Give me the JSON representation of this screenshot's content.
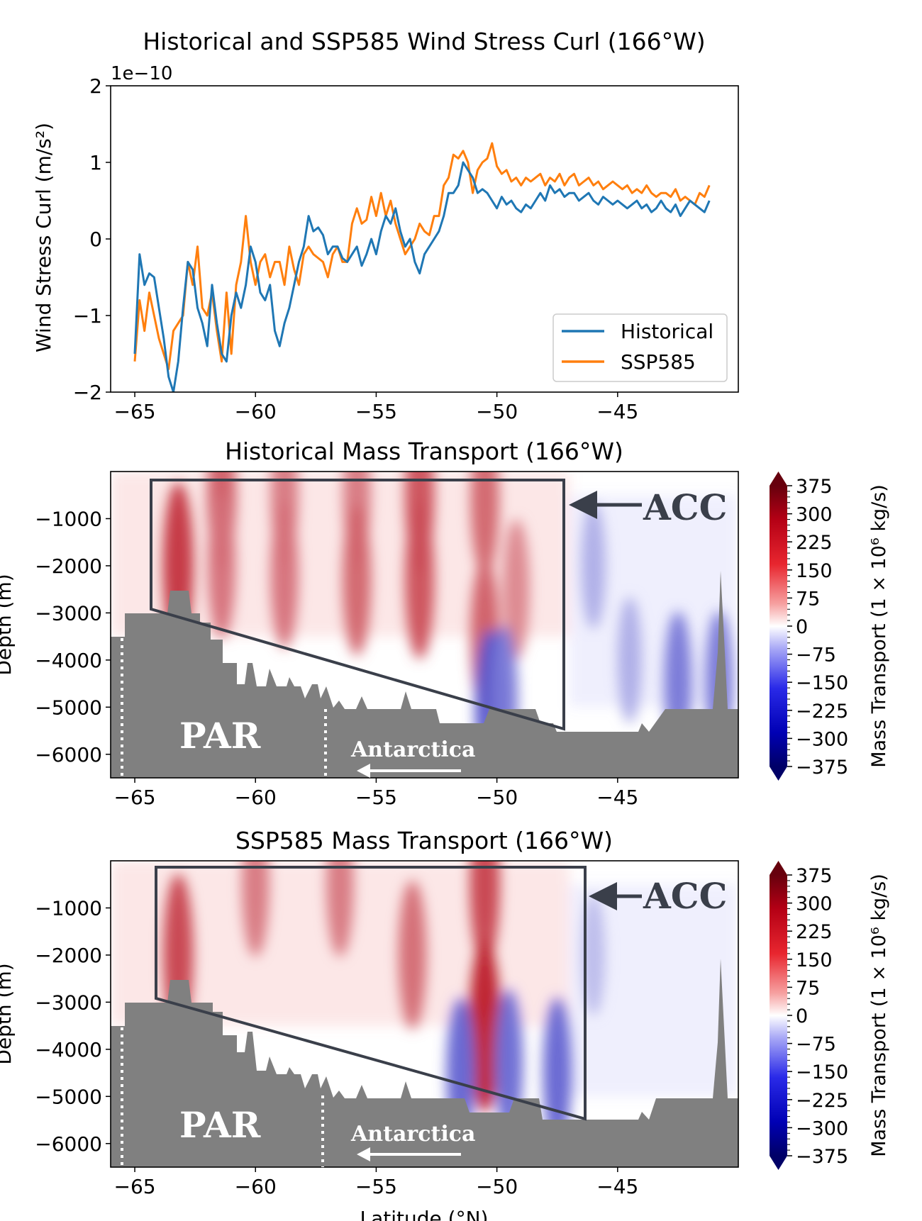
{
  "colors": {
    "historical": "#1f77b4",
    "ssp585": "#ff7f0e",
    "bathymetry": "#808080",
    "box": "#3a3f4a"
  },
  "chart_data": [
    {
      "type": "line",
      "title": "Historical and SSP585 Wind Stress Curl (166$^\\circ$W)",
      "title_text": "Historical and SSP585 Wind Stress Curl (166°W)",
      "ylabel": "Wind Stress Curl (m/s²)",
      "offset_text": "1e−10",
      "xlim": [
        -66,
        -40
      ],
      "ylim": [
        -2,
        2
      ],
      "xticks": [
        -65,
        -60,
        -55,
        -50,
        -45
      ],
      "xtick_labels": [
        "−65",
        "−60",
        "−55",
        "−50",
        "−45"
      ],
      "yticks": [
        -2,
        -1,
        0,
        1,
        2
      ],
      "ytick_labels": [
        "−2",
        "−1",
        "0",
        "1",
        "2"
      ],
      "legend": {
        "position": "lower-right",
        "entries": [
          "Historical",
          "SSP585"
        ]
      },
      "series": [
        {
          "name": "Historical",
          "x": [
            -65.0,
            -64.8,
            -64.6,
            -64.4,
            -64.2,
            -64.0,
            -63.8,
            -63.6,
            -63.4,
            -63.2,
            -63.0,
            -62.8,
            -62.6,
            -62.4,
            -62.2,
            -62.0,
            -61.8,
            -61.6,
            -61.4,
            -61.2,
            -61.0,
            -60.8,
            -60.6,
            -60.4,
            -60.2,
            -60.0,
            -59.8,
            -59.6,
            -59.4,
            -59.2,
            -59.0,
            -58.8,
            -58.6,
            -58.4,
            -58.2,
            -58.0,
            -57.8,
            -57.6,
            -57.4,
            -57.2,
            -57.0,
            -56.8,
            -56.6,
            -56.4,
            -56.2,
            -56.0,
            -55.8,
            -55.6,
            -55.4,
            -55.2,
            -55.0,
            -54.8,
            -54.6,
            -54.4,
            -54.2,
            -54.0,
            -53.8,
            -53.6,
            -53.4,
            -53.2,
            -53.0,
            -52.8,
            -52.6,
            -52.4,
            -52.2,
            -52.0,
            -51.8,
            -51.6,
            -51.4,
            -51.2,
            -51.0,
            -50.8,
            -50.6,
            -50.4,
            -50.2,
            -50.0,
            -49.8,
            -49.6,
            -49.4,
            -49.2,
            -49.0,
            -48.8,
            -48.6,
            -48.4,
            -48.2,
            -48.0,
            -47.8,
            -47.6,
            -47.4,
            -47.2,
            -47.0,
            -46.8,
            -46.6,
            -46.4,
            -46.2,
            -46.0,
            -45.8,
            -45.6,
            -45.4,
            -45.2,
            -45.0,
            -44.8,
            -44.6,
            -44.4,
            -44.2,
            -44.0,
            -43.8,
            -43.6,
            -43.4,
            -43.2,
            -43.0,
            -42.8,
            -42.6,
            -42.4,
            -42.2,
            -42.0,
            -41.8,
            -41.6,
            -41.4,
            -41.2
          ],
          "y": [
            -1.5,
            -0.2,
            -0.6,
            -0.45,
            -0.5,
            -0.9,
            -1.3,
            -1.8,
            -2.0,
            -1.6,
            -0.9,
            -0.3,
            -0.4,
            -0.9,
            -1.1,
            -1.4,
            -0.6,
            -1.1,
            -1.5,
            -1.6,
            -1.0,
            -0.7,
            -0.9,
            -0.6,
            -0.1,
            -0.3,
            -0.7,
            -0.8,
            -0.6,
            -1.2,
            -1.4,
            -1.1,
            -0.9,
            -0.6,
            -0.3,
            -0.1,
            0.3,
            0.1,
            0.15,
            0.05,
            -0.2,
            -0.1,
            -0.1,
            -0.25,
            -0.3,
            -0.2,
            -0.1,
            -0.35,
            -0.2,
            0.0,
            -0.2,
            0.1,
            0.3,
            0.2,
            0.4,
            0.1,
            -0.1,
            0.0,
            -0.3,
            -0.45,
            -0.2,
            -0.1,
            0.0,
            0.1,
            0.3,
            0.6,
            0.6,
            0.7,
            1.0,
            0.9,
            0.8,
            0.6,
            0.65,
            0.6,
            0.5,
            0.4,
            0.55,
            0.45,
            0.5,
            0.4,
            0.35,
            0.45,
            0.4,
            0.5,
            0.6,
            0.5,
            0.7,
            0.6,
            0.65,
            0.55,
            0.6,
            0.6,
            0.5,
            0.55,
            0.6,
            0.5,
            0.45,
            0.55,
            0.5,
            0.45,
            0.5,
            0.45,
            0.4,
            0.45,
            0.5,
            0.4,
            0.45,
            0.35,
            0.4,
            0.5,
            0.4,
            0.35,
            0.45,
            0.3,
            0.4,
            0.5,
            0.45,
            0.4,
            0.35,
            0.5
          ]
        },
        {
          "name": "SSP585",
          "x": [
            -65.0,
            -64.8,
            -64.6,
            -64.4,
            -64.2,
            -64.0,
            -63.8,
            -63.6,
            -63.4,
            -63.2,
            -63.0,
            -62.8,
            -62.6,
            -62.4,
            -62.2,
            -62.0,
            -61.8,
            -61.6,
            -61.4,
            -61.2,
            -61.0,
            -60.8,
            -60.6,
            -60.4,
            -60.2,
            -60.0,
            -59.8,
            -59.6,
            -59.4,
            -59.2,
            -59.0,
            -58.8,
            -58.6,
            -58.4,
            -58.2,
            -58.0,
            -57.8,
            -57.6,
            -57.4,
            -57.2,
            -57.0,
            -56.8,
            -56.6,
            -56.4,
            -56.2,
            -56.0,
            -55.8,
            -55.6,
            -55.4,
            -55.2,
            -55.0,
            -54.8,
            -54.6,
            -54.4,
            -54.2,
            -54.0,
            -53.8,
            -53.6,
            -53.4,
            -53.2,
            -53.0,
            -52.8,
            -52.6,
            -52.4,
            -52.2,
            -52.0,
            -51.8,
            -51.6,
            -51.4,
            -51.2,
            -51.0,
            -50.8,
            -50.6,
            -50.4,
            -50.2,
            -50.0,
            -49.8,
            -49.6,
            -49.4,
            -49.2,
            -49.0,
            -48.8,
            -48.6,
            -48.4,
            -48.2,
            -48.0,
            -47.8,
            -47.6,
            -47.4,
            -47.2,
            -47.0,
            -46.8,
            -46.6,
            -46.4,
            -46.2,
            -46.0,
            -45.8,
            -45.6,
            -45.4,
            -45.2,
            -45.0,
            -44.8,
            -44.6,
            -44.4,
            -44.2,
            -44.0,
            -43.8,
            -43.6,
            -43.4,
            -43.2,
            -43.0,
            -42.8,
            -42.6,
            -42.4,
            -42.2,
            -42.0,
            -41.8,
            -41.6,
            -41.4,
            -41.2
          ],
          "y": [
            -1.6,
            -0.8,
            -1.2,
            -0.7,
            -1.0,
            -1.3,
            -1.5,
            -1.7,
            -1.2,
            -1.1,
            -1.0,
            -0.3,
            -0.6,
            -0.1,
            -0.9,
            -1.0,
            -0.7,
            -1.2,
            -1.6,
            -0.7,
            -1.5,
            -0.6,
            -0.3,
            0.3,
            -0.3,
            -0.6,
            -0.3,
            -0.2,
            -0.5,
            -0.3,
            -0.3,
            -0.6,
            -0.1,
            -0.4,
            -0.6,
            -0.2,
            -0.1,
            -0.2,
            -0.25,
            -0.3,
            -0.5,
            -0.2,
            -0.1,
            -0.3,
            -0.3,
            0.2,
            0.4,
            0.2,
            0.25,
            0.55,
            0.3,
            0.6,
            0.3,
            0.5,
            0.2,
            0.0,
            -0.2,
            -0.1,
            0.0,
            0.2,
            0.1,
            0.05,
            0.3,
            0.3,
            0.7,
            0.8,
            1.1,
            1.05,
            1.15,
            1.0,
            0.6,
            0.9,
            1.0,
            1.05,
            1.25,
            0.95,
            0.85,
            0.9,
            0.75,
            0.8,
            0.7,
            0.8,
            0.75,
            0.8,
            0.85,
            0.7,
            0.8,
            0.75,
            0.85,
            0.7,
            0.8,
            0.85,
            0.7,
            0.75,
            0.8,
            0.7,
            0.75,
            0.65,
            0.7,
            0.75,
            0.7,
            0.65,
            0.7,
            0.6,
            0.65,
            0.6,
            0.7,
            0.6,
            0.55,
            0.6,
            0.6,
            0.55,
            0.65,
            0.5,
            0.55,
            0.5,
            0.45,
            0.6,
            0.55,
            0.7
          ]
        }
      ]
    },
    {
      "type": "heatmap",
      "title": "Historical Mass Transport (166°W)",
      "ylabel": "Depth (m)",
      "xlim": [
        -66,
        -40
      ],
      "ylim": [
        -6500,
        0
      ],
      "xticks": [
        -65,
        -60,
        -55,
        -50,
        -45
      ],
      "xtick_labels": [
        "−65",
        "−60",
        "−55",
        "−50",
        "−45"
      ],
      "yticks": [
        -1000,
        -2000,
        -3000,
        -4000,
        -5000,
        -6000
      ],
      "ytick_labels": [
        "−1000",
        "−2000",
        "−3000",
        "−4000",
        "−5000",
        "−6000"
      ],
      "colorbar": {
        "label": "Mass Transport (1 × 10⁶ kg/s)",
        "range": [
          -375,
          375
        ],
        "ticks": [
          "375",
          "300",
          "225",
          "150",
          "75",
          "0",
          "−75",
          "−150",
          "−225",
          "−300",
          "−375"
        ]
      },
      "annotations": {
        "acc": "ACC",
        "par": "PAR",
        "antarctica": "Antarctica"
      },
      "positive_cores": [
        {
          "lat": -63.2,
          "depth": -2000,
          "value": 300
        },
        {
          "lat": -61.4,
          "depth": -500,
          "value": 240
        },
        {
          "lat": -61.4,
          "depth": -2000,
          "value": 210
        },
        {
          "lat": -58.8,
          "depth": -500,
          "value": 200
        },
        {
          "lat": -58.8,
          "depth": -2200,
          "value": 210
        },
        {
          "lat": -55.8,
          "depth": -500,
          "value": 200
        },
        {
          "lat": -55.8,
          "depth": -2300,
          "value": 230
        },
        {
          "lat": -53.2,
          "depth": -500,
          "value": 260
        },
        {
          "lat": -53.2,
          "depth": -2300,
          "value": 260
        },
        {
          "lat": -50.5,
          "depth": -600,
          "value": 230
        },
        {
          "lat": -50.5,
          "depth": -3500,
          "value": 240
        },
        {
          "lat": -49.2,
          "depth": -2500,
          "value": 180
        }
      ],
      "negative_cores": [
        {
          "lat": -50.3,
          "depth": -5000,
          "value": -250
        },
        {
          "lat": -49.7,
          "depth": -4800,
          "value": -200
        },
        {
          "lat": -46.0,
          "depth": -2000,
          "value": -120
        },
        {
          "lat": -44.5,
          "depth": -4000,
          "value": -120
        },
        {
          "lat": -42.5,
          "depth": -4500,
          "value": -200
        },
        {
          "lat": -40.8,
          "depth": -4500,
          "value": -200
        }
      ]
    },
    {
      "type": "heatmap",
      "title": "SSP585 Mass Transport (166°W)",
      "xlabel": "Latitude (°N)",
      "ylabel": "Depth (m)",
      "xlim": [
        -66,
        -40
      ],
      "ylim": [
        -6500,
        0
      ],
      "xticks": [
        -65,
        -60,
        -55,
        -50,
        -45
      ],
      "xtick_labels": [
        "−65",
        "−60",
        "−55",
        "−50",
        "−45"
      ],
      "yticks": [
        -1000,
        -2000,
        -3000,
        -4000,
        -5000,
        -6000
      ],
      "ytick_labels": [
        "−1000",
        "−2000",
        "−3000",
        "−4000",
        "−5000",
        "−6000"
      ],
      "colorbar": {
        "label": "Mass Transport (1 × 10⁶ kg/s)",
        "range": [
          -375,
          375
        ],
        "ticks": [
          "375",
          "300",
          "225",
          "150",
          "75",
          "0",
          "−75",
          "−150",
          "−225",
          "−300",
          "−375"
        ]
      },
      "annotations": {
        "acc": "ACC",
        "par": "PAR",
        "antarctica": "Antarctica"
      },
      "positive_cores": [
        {
          "lat": -63.2,
          "depth": -2000,
          "value": 280
        },
        {
          "lat": -60.0,
          "depth": -500,
          "value": 200
        },
        {
          "lat": -56.5,
          "depth": -500,
          "value": 200
        },
        {
          "lat": -53.5,
          "depth": -2000,
          "value": 220
        },
        {
          "lat": -50.5,
          "depth": -500,
          "value": 280
        },
        {
          "lat": -50.5,
          "depth": -3500,
          "value": 330
        }
      ],
      "negative_cores": [
        {
          "lat": -51.5,
          "depth": -4500,
          "value": -230
        },
        {
          "lat": -49.5,
          "depth": -4300,
          "value": -220
        },
        {
          "lat": -47.5,
          "depth": -4500,
          "value": -230
        },
        {
          "lat": -46.0,
          "depth": -2000,
          "value": -100
        }
      ]
    }
  ]
}
